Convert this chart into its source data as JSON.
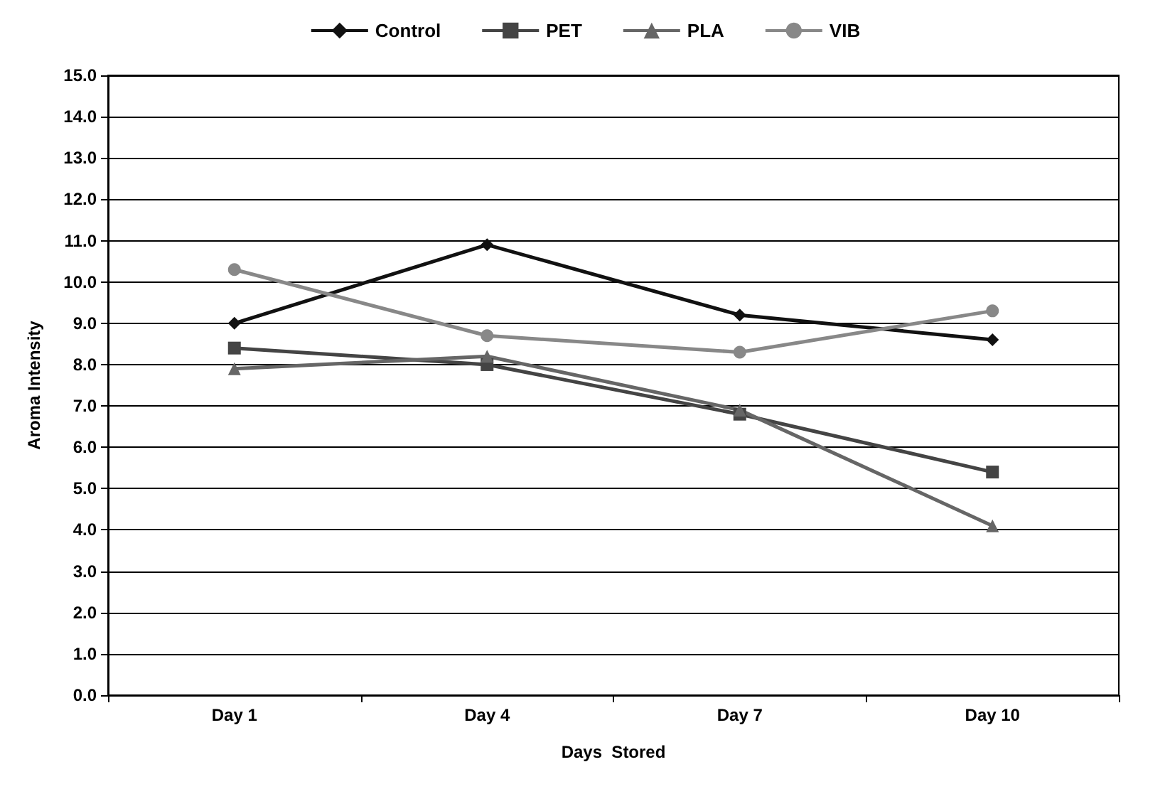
{
  "chart_data": {
    "type": "line",
    "xlabel": "Days  Stored",
    "ylabel": "Aroma Intensity",
    "categories": [
      "Day 1",
      "Day 4",
      "Day 7",
      "Day 10"
    ],
    "series": [
      {
        "name": "Control",
        "color": "#111111",
        "marker": "diamond",
        "values": [
          9.0,
          10.9,
          9.2,
          8.6
        ]
      },
      {
        "name": "PET",
        "color": "#444444",
        "marker": "square",
        "values": [
          8.4,
          8.0,
          6.8,
          5.4
        ]
      },
      {
        "name": "PLA",
        "color": "#666666",
        "marker": "triangle",
        "values": [
          7.9,
          8.2,
          6.9,
          4.1
        ]
      },
      {
        "name": "VIB",
        "color": "#888888",
        "marker": "circle",
        "values": [
          10.3,
          8.7,
          8.3,
          9.3
        ]
      }
    ],
    "ylim": [
      0,
      15
    ],
    "yticks": [
      {
        "value": 0,
        "label": "0.0"
      },
      {
        "value": 1,
        "label": "1.0"
      },
      {
        "value": 2,
        "label": "2.0"
      },
      {
        "value": 3,
        "label": "3.0"
      },
      {
        "value": 4,
        "label": "4.0"
      },
      {
        "value": 5,
        "label": "5.0"
      },
      {
        "value": 6,
        "label": "6.0"
      },
      {
        "value": 7,
        "label": "7.0"
      },
      {
        "value": 8,
        "label": "8.0"
      },
      {
        "value": 9,
        "label": "9.0"
      },
      {
        "value": 10,
        "label": "10.0"
      },
      {
        "value": 11,
        "label": "11.0"
      },
      {
        "value": 12,
        "label": "12.0"
      },
      {
        "value": 13,
        "label": "13.0"
      },
      {
        "value": 14,
        "label": "14.0"
      },
      {
        "value": 15,
        "label": "15.0"
      }
    ],
    "grid": "y",
    "legend": "top",
    "line_style": "solid"
  }
}
